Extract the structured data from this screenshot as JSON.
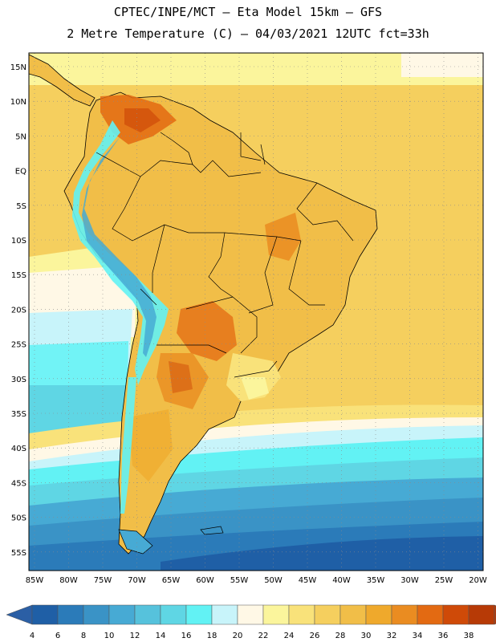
{
  "header": {
    "line1": "CPTEC/INPE/MCT –  Eta Model 15km – GFS",
    "line2": "2 Metre Temperature (C) – 04/03/2021 12UTC fct=33h"
  },
  "map": {
    "lat_labels": [
      "15N",
      "10N",
      "5N",
      "EQ",
      "5S",
      "10S",
      "15S",
      "20S",
      "25S",
      "30S",
      "35S",
      "40S",
      "45S",
      "50S",
      "55S"
    ],
    "lon_labels": [
      "85W",
      "80W",
      "75W",
      "70W",
      "65W",
      "60W",
      "55W",
      "50W",
      "45W",
      "40W",
      "35W",
      "30W",
      "25W",
      "20W"
    ]
  },
  "legend": {
    "values": [
      "4",
      "6",
      "8",
      "10",
      "12",
      "14",
      "16",
      "18",
      "20",
      "22",
      "24",
      "26",
      "28",
      "30",
      "32",
      "34",
      "36",
      "38"
    ],
    "colors": [
      "#1f5fa6",
      "#2b7bb9",
      "#3a93c6",
      "#47aad4",
      "#56c2dc",
      "#5fd6e4",
      "#62f2f4",
      "#c8f4fa",
      "#fff8e6",
      "#fbf59c",
      "#f9e27a",
      "#f5cf5e",
      "#f1be48",
      "#efa92c",
      "#ea8c21",
      "#e36a12",
      "#cf4a08",
      "#b73a06"
    ],
    "left_arrow_color": "#2b5fa5",
    "right_arrow_color": "#b03c10"
  }
}
